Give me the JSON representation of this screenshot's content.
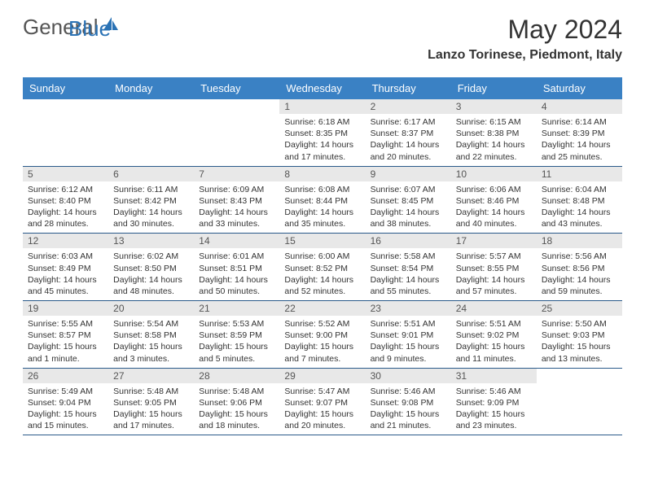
{
  "brand": {
    "part1": "General",
    "part2": "Blue"
  },
  "title": "May 2024",
  "location": "Lanzo Torinese, Piedmont, Italy",
  "colors": {
    "header_bg": "#3a81c4",
    "daynum_bg": "#e8e8e8",
    "rule": "#2a5a8a",
    "brand_blue": "#2a72b5"
  },
  "weekdays": [
    "Sunday",
    "Monday",
    "Tuesday",
    "Wednesday",
    "Thursday",
    "Friday",
    "Saturday"
  ],
  "weeks": [
    [
      null,
      null,
      null,
      {
        "n": "1",
        "sunrise": "6:18 AM",
        "sunset": "8:35 PM",
        "day": "14 hours and 17 minutes."
      },
      {
        "n": "2",
        "sunrise": "6:17 AM",
        "sunset": "8:37 PM",
        "day": "14 hours and 20 minutes."
      },
      {
        "n": "3",
        "sunrise": "6:15 AM",
        "sunset": "8:38 PM",
        "day": "14 hours and 22 minutes."
      },
      {
        "n": "4",
        "sunrise": "6:14 AM",
        "sunset": "8:39 PM",
        "day": "14 hours and 25 minutes."
      }
    ],
    [
      {
        "n": "5",
        "sunrise": "6:12 AM",
        "sunset": "8:40 PM",
        "day": "14 hours and 28 minutes."
      },
      {
        "n": "6",
        "sunrise": "6:11 AM",
        "sunset": "8:42 PM",
        "day": "14 hours and 30 minutes."
      },
      {
        "n": "7",
        "sunrise": "6:09 AM",
        "sunset": "8:43 PM",
        "day": "14 hours and 33 minutes."
      },
      {
        "n": "8",
        "sunrise": "6:08 AM",
        "sunset": "8:44 PM",
        "day": "14 hours and 35 minutes."
      },
      {
        "n": "9",
        "sunrise": "6:07 AM",
        "sunset": "8:45 PM",
        "day": "14 hours and 38 minutes."
      },
      {
        "n": "10",
        "sunrise": "6:06 AM",
        "sunset": "8:46 PM",
        "day": "14 hours and 40 minutes."
      },
      {
        "n": "11",
        "sunrise": "6:04 AM",
        "sunset": "8:48 PM",
        "day": "14 hours and 43 minutes."
      }
    ],
    [
      {
        "n": "12",
        "sunrise": "6:03 AM",
        "sunset": "8:49 PM",
        "day": "14 hours and 45 minutes."
      },
      {
        "n": "13",
        "sunrise": "6:02 AM",
        "sunset": "8:50 PM",
        "day": "14 hours and 48 minutes."
      },
      {
        "n": "14",
        "sunrise": "6:01 AM",
        "sunset": "8:51 PM",
        "day": "14 hours and 50 minutes."
      },
      {
        "n": "15",
        "sunrise": "6:00 AM",
        "sunset": "8:52 PM",
        "day": "14 hours and 52 minutes."
      },
      {
        "n": "16",
        "sunrise": "5:58 AM",
        "sunset": "8:54 PM",
        "day": "14 hours and 55 minutes."
      },
      {
        "n": "17",
        "sunrise": "5:57 AM",
        "sunset": "8:55 PM",
        "day": "14 hours and 57 minutes."
      },
      {
        "n": "18",
        "sunrise": "5:56 AM",
        "sunset": "8:56 PM",
        "day": "14 hours and 59 minutes."
      }
    ],
    [
      {
        "n": "19",
        "sunrise": "5:55 AM",
        "sunset": "8:57 PM",
        "day": "15 hours and 1 minute."
      },
      {
        "n": "20",
        "sunrise": "5:54 AM",
        "sunset": "8:58 PM",
        "day": "15 hours and 3 minutes."
      },
      {
        "n": "21",
        "sunrise": "5:53 AM",
        "sunset": "8:59 PM",
        "day": "15 hours and 5 minutes."
      },
      {
        "n": "22",
        "sunrise": "5:52 AM",
        "sunset": "9:00 PM",
        "day": "15 hours and 7 minutes."
      },
      {
        "n": "23",
        "sunrise": "5:51 AM",
        "sunset": "9:01 PM",
        "day": "15 hours and 9 minutes."
      },
      {
        "n": "24",
        "sunrise": "5:51 AM",
        "sunset": "9:02 PM",
        "day": "15 hours and 11 minutes."
      },
      {
        "n": "25",
        "sunrise": "5:50 AM",
        "sunset": "9:03 PM",
        "day": "15 hours and 13 minutes."
      }
    ],
    [
      {
        "n": "26",
        "sunrise": "5:49 AM",
        "sunset": "9:04 PM",
        "day": "15 hours and 15 minutes."
      },
      {
        "n": "27",
        "sunrise": "5:48 AM",
        "sunset": "9:05 PM",
        "day": "15 hours and 17 minutes."
      },
      {
        "n": "28",
        "sunrise": "5:48 AM",
        "sunset": "9:06 PM",
        "day": "15 hours and 18 minutes."
      },
      {
        "n": "29",
        "sunrise": "5:47 AM",
        "sunset": "9:07 PM",
        "day": "15 hours and 20 minutes."
      },
      {
        "n": "30",
        "sunrise": "5:46 AM",
        "sunset": "9:08 PM",
        "day": "15 hours and 21 minutes."
      },
      {
        "n": "31",
        "sunrise": "5:46 AM",
        "sunset": "9:09 PM",
        "day": "15 hours and 23 minutes."
      },
      null
    ]
  ],
  "labels": {
    "sunrise": "Sunrise:",
    "sunset": "Sunset:",
    "daylight": "Daylight:"
  }
}
